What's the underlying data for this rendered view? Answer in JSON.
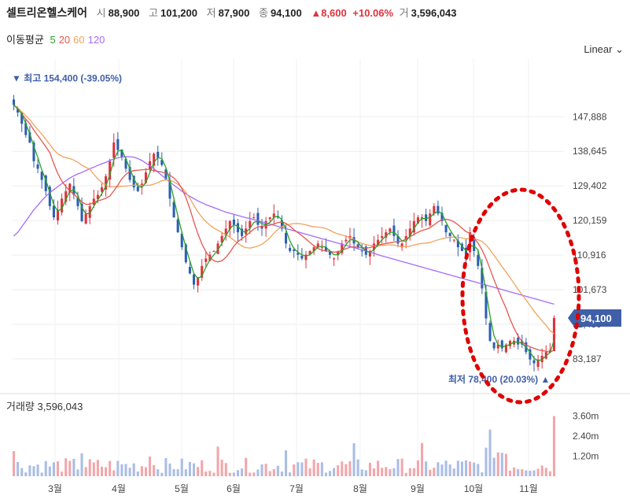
{
  "header": {
    "name": "셀트리온헬스케어",
    "open_label": "시",
    "open": "88,900",
    "high_label": "고",
    "high": "101,200",
    "low_label": "저",
    "low": "87,900",
    "close_label": "종",
    "close": "94,100",
    "change": "▲8,600",
    "change_pct": "+10.06%",
    "vol_label": "거",
    "vol": "3,596,043"
  },
  "ma_legend": {
    "label": "이동평균",
    "items": [
      {
        "text": "5",
        "color": "#2ca02c"
      },
      {
        "text": "20",
        "color": "#e8554e"
      },
      {
        "text": "60",
        "color": "#f0a35c"
      },
      {
        "text": "120",
        "color": "#a36bff"
      }
    ]
  },
  "scale_label": "Linear",
  "colors": {
    "up": "#e0323c",
    "down": "#2b5fb4",
    "ma5": "#2ca02c",
    "ma20": "#e8554e",
    "ma60": "#f0a35c",
    "ma120": "#a36bff",
    "price_tag": "#3f5fa8"
  },
  "chart_data": {
    "type": "candlestick",
    "y_ticks": [
      "147,888",
      "138,645",
      "129,402",
      "120,159",
      "110,916",
      "101,673",
      "92,430",
      "83,187"
    ],
    "x_ticks": [
      "3월",
      "4월",
      "5월",
      "6월",
      "7월",
      "8월",
      "9월",
      "10월",
      "11월"
    ],
    "ylim": [
      76000,
      157000
    ],
    "current_price": 94100,
    "current_price_label": "94,100",
    "max_label": "▼ 최고 154,400 (-39.05%)",
    "max_value": 154400,
    "min_label": "최저 78,400 (20.03%) ▲",
    "min_value": 78400,
    "close_series": [
      151000,
      149000,
      146000,
      143000,
      141000,
      136000,
      134000,
      131000,
      128000,
      124000,
      121000,
      123000,
      126000,
      128000,
      130000,
      127000,
      124000,
      120000,
      122000,
      124000,
      126000,
      127000,
      129000,
      132000,
      136000,
      141000,
      139000,
      137000,
      134000,
      131000,
      129000,
      128000,
      130000,
      133000,
      136000,
      138000,
      137000,
      135000,
      131000,
      126000,
      121000,
      117000,
      113000,
      109000,
      106000,
      103000,
      105000,
      108000,
      110000,
      111000,
      112000,
      114000,
      116000,
      118000,
      120000,
      119000,
      117000,
      116000,
      118000,
      120000,
      121000,
      119000,
      118000,
      120000,
      121000,
      122000,
      121000,
      118000,
      114000,
      112000,
      112000,
      111000,
      110000,
      111000,
      112000,
      113000,
      114000,
      113000,
      112000,
      111000,
      110000,
      112000,
      114000,
      115000,
      116000,
      114000,
      113000,
      112000,
      111000,
      112000,
      114000,
      115000,
      116000,
      117000,
      118000,
      116000,
      114000,
      114000,
      116000,
      118000,
      120000,
      121000,
      121000,
      120000,
      122000,
      124000,
      122000,
      120000,
      117000,
      116000,
      115000,
      113000,
      112000,
      111000,
      117000,
      112000,
      108000,
      102000,
      94000,
      88000,
      86000,
      87000,
      86000,
      87000,
      88000,
      88000,
      87000,
      87000,
      85000,
      83000,
      82000,
      83000,
      84000,
      85000,
      85500,
      94100
    ],
    "ma120": [
      116000,
      117000,
      118500,
      120000,
      121500,
      123000,
      124200,
      125500,
      126600,
      127600,
      128400,
      129200,
      130000,
      130800,
      131500,
      132100,
      132600,
      133000,
      133500,
      134000,
      134400,
      134900,
      135300,
      135700,
      136200,
      136600,
      136900,
      137100,
      137200,
      137200,
      137100,
      136700,
      136200,
      135500,
      134800,
      134000,
      133100,
      132200,
      131300,
      130400,
      129600,
      128800,
      128000,
      127300,
      126600,
      126000,
      125400,
      124900,
      124400,
      124000,
      123600,
      123200,
      122800,
      122400,
      122100,
      121800,
      121500,
      121200,
      120900,
      120700,
      120400,
      120100,
      119800,
      119500,
      119200,
      118900,
      118600,
      118300,
      118000,
      117700,
      117400,
      117100,
      116800,
      116500,
      116200,
      115900,
      115600,
      115300,
      115000,
      114700,
      114400,
      114100,
      113800,
      113500,
      113200,
      112900,
      112600,
      112300,
      112000,
      111700,
      111400,
      111000,
      110700,
      110400,
      110100,
      109800,
      109500,
      109200,
      108900,
      108600,
      108300,
      108000,
      107700,
      107400,
      107100,
      106800,
      106500,
      106200,
      105900,
      105600,
      105300,
      105000,
      104700,
      104400,
      104100,
      103800,
      103500,
      103200,
      102900,
      102600,
      102300,
      102000,
      101700,
      101400,
      101100,
      100800,
      100500,
      100200,
      99900,
      99600,
      99300,
      99000,
      98700,
      98400,
      98100,
      97800
    ],
    "volume_ticks": [
      "3.60m",
      "2.40m",
      "1.20m"
    ],
    "volume_label": "거래량",
    "volume_value": "3,596,043",
    "volume_max": 4000000
  }
}
